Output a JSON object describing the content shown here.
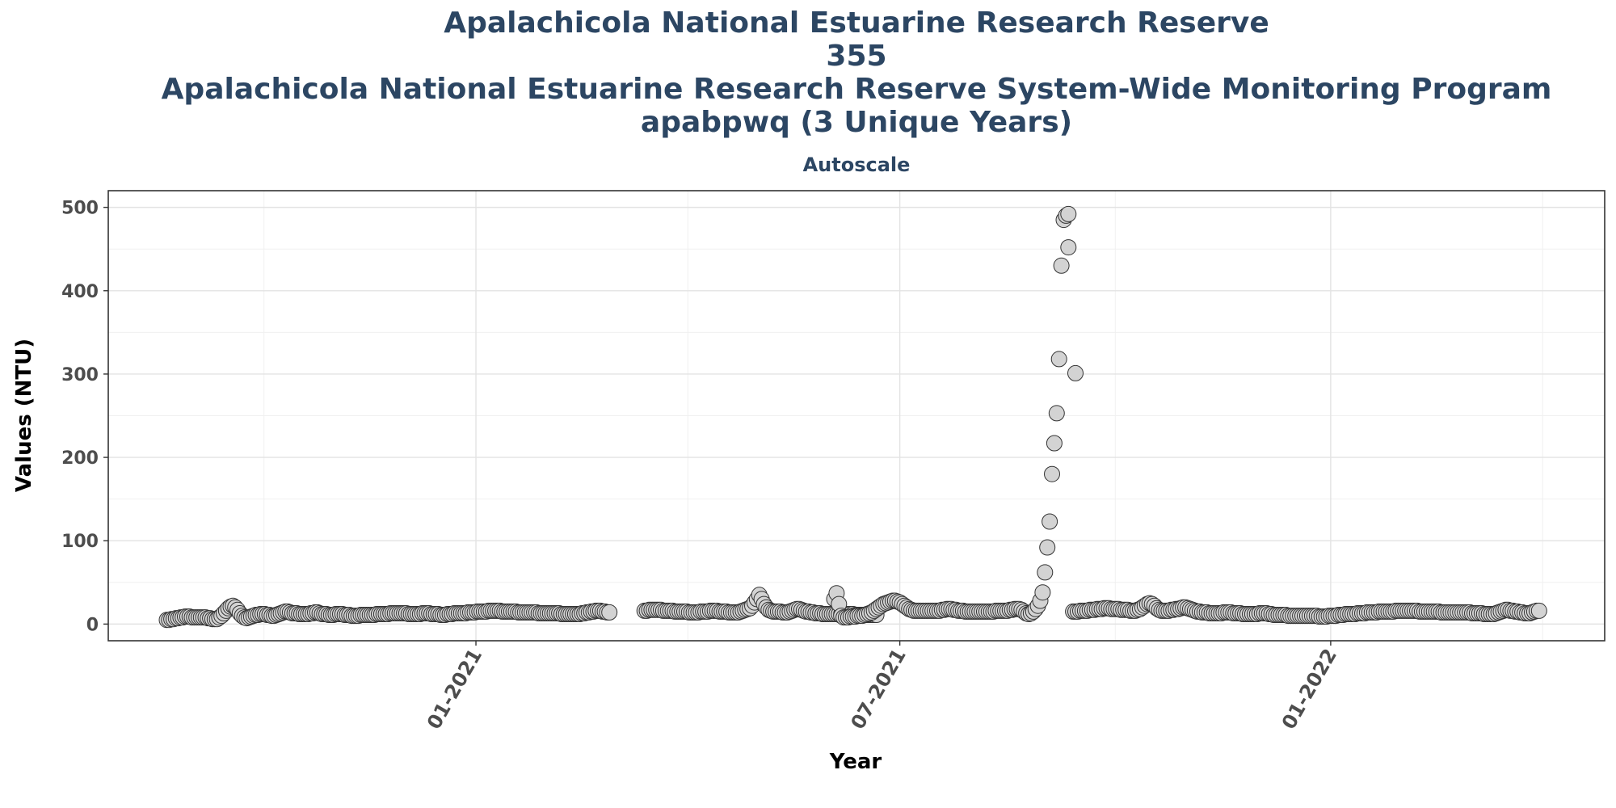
{
  "chart_data": {
    "type": "scatter",
    "title_lines": [
      "Apalachicola National Estuarine Research Reserve",
      "355",
      "Apalachicola National Estuarine Research Reserve System-Wide Monitoring Program",
      "apabpwq (3 Unique Years)"
    ],
    "subtitle": "Autoscale",
    "xlabel": "Year",
    "ylabel": "Values (NTU)",
    "xlim": [
      "2020-07-28",
      "2022-04-28"
    ],
    "ylim": [
      -20,
      520
    ],
    "x_ticks": [
      {
        "label": "01-2021",
        "date": "2021-01-01"
      },
      {
        "label": "07-2021",
        "date": "2021-07-01"
      },
      {
        "label": "01-2022",
        "date": "2022-01-01"
      }
    ],
    "y_ticks": [
      0,
      100,
      200,
      300,
      400,
      500
    ],
    "grid": true,
    "legend": "none",
    "marker_fill": "#D3D3D3",
    "marker_stroke": "#333333",
    "segments": [
      {
        "start": "2020-08-22",
        "end": "2021-02-27",
        "values": [
          5,
          5,
          6,
          6,
          7,
          7,
          8,
          8,
          9,
          9,
          9,
          8,
          8,
          8,
          8,
          8,
          8,
          8,
          7,
          7,
          6,
          6,
          6,
          8,
          10,
          13,
          16,
          19,
          21,
          22,
          20,
          17,
          13,
          10,
          8,
          7,
          8,
          9,
          10,
          11,
          11,
          12,
          12,
          12,
          11,
          11,
          10,
          10,
          11,
          12,
          13,
          14,
          15,
          15,
          14,
          13,
          13,
          13,
          12,
          12,
          12,
          12,
          12,
          13,
          13,
          14,
          14,
          13,
          12,
          12,
          12,
          11,
          11,
          11,
          12,
          12,
          12,
          12,
          11,
          11,
          11,
          10,
          10,
          10,
          10,
          11,
          11,
          11,
          11,
          11,
          11,
          11,
          12,
          12,
          12,
          12,
          12,
          12,
          13,
          13,
          13,
          13,
          13,
          13,
          13,
          13,
          12,
          12,
          12,
          12,
          12,
          12,
          13,
          13,
          13,
          13,
          12,
          12,
          12,
          12,
          11,
          11,
          11,
          12,
          12,
          12,
          13,
          13,
          13,
          13,
          13,
          13,
          14,
          14,
          14,
          14,
          15,
          15,
          15,
          15,
          15,
          16,
          16,
          16,
          16,
          16,
          16,
          15,
          15,
          15,
          15,
          15,
          15,
          15,
          14,
          14,
          14,
          14,
          14,
          14,
          14,
          14,
          14,
          13,
          13,
          13,
          13,
          13,
          13,
          13,
          13,
          13,
          13,
          12,
          12,
          12,
          12,
          12,
          12,
          12,
          12,
          12,
          13,
          13,
          14,
          14,
          15,
          15,
          16,
          16,
          16,
          15,
          15,
          14,
          14
        ]
      },
      {
        "start": "2021-03-14",
        "end": "2021-06-21",
        "values": [
          16,
          16,
          17,
          17,
          17,
          17,
          17,
          17,
          16,
          16,
          16,
          16,
          16,
          15,
          15,
          15,
          15,
          15,
          15,
          14,
          14,
          14,
          14,
          14,
          15,
          15,
          15,
          15,
          16,
          16,
          16,
          16,
          15,
          15,
          15,
          15,
          14,
          14,
          14,
          14,
          14,
          15,
          16,
          17,
          18,
          19,
          22,
          26,
          30,
          35,
          30,
          24,
          20,
          17,
          16,
          15,
          15,
          15,
          15,
          14,
          14,
          14,
          15,
          16,
          17,
          18,
          18,
          17,
          16,
          15,
          15,
          14,
          14,
          13,
          13,
          13,
          12,
          12,
          12,
          12,
          12,
          12,
          12,
          12,
          12,
          12,
          12,
          12,
          12,
          12,
          11,
          11,
          11,
          11,
          11,
          11,
          11,
          11,
          11,
          11
        ]
      },
      {
        "start": "2021-06-03",
        "end": "2021-06-06",
        "values": [
          30,
          37,
          24,
          10
        ]
      },
      {
        "start": "2021-06-07",
        "end": "2021-08-20",
        "values": [
          8,
          8,
          8,
          9,
          9,
          9,
          10,
          10,
          10,
          11,
          12,
          13,
          14,
          16,
          18,
          20,
          22,
          24,
          25,
          26,
          27,
          28,
          28,
          27,
          26,
          24,
          22,
          20,
          18,
          17,
          16,
          16,
          16,
          16,
          16,
          16,
          16,
          16,
          16,
          16,
          16,
          16,
          17,
          17,
          18,
          18,
          18,
          17,
          17,
          16,
          16,
          16,
          15,
          15,
          15,
          15,
          15,
          15,
          15,
          15,
          15,
          15,
          15,
          15,
          15,
          16,
          16,
          16,
          16,
          16,
          16,
          17,
          17,
          18,
          18
        ]
      },
      {
        "start": "2021-08-21",
        "end": "2021-09-11",
        "values": [
          18,
          17,
          15,
          13,
          12,
          13,
          15,
          18,
          22,
          28,
          38,
          62,
          92,
          123,
          180,
          217,
          253,
          318,
          430,
          485,
          490,
          492
        ]
      },
      {
        "start": "2021-09-11",
        "end": "2021-09-14",
        "values": [
          452,
          301
        ]
      },
      {
        "start": "2021-09-13",
        "end": "2022-03-31",
        "values": [
          15,
          15,
          15,
          16,
          16,
          16,
          16,
          17,
          17,
          17,
          18,
          18,
          18,
          19,
          19,
          19,
          18,
          18,
          18,
          18,
          17,
          17,
          17,
          17,
          16,
          16,
          16,
          17,
          18,
          20,
          22,
          24,
          25,
          24,
          22,
          19,
          17,
          16,
          16,
          16,
          16,
          17,
          17,
          18,
          18,
          19,
          20,
          20,
          19,
          18,
          17,
          16,
          15,
          15,
          14,
          14,
          14,
          13,
          13,
          13,
          13,
          13,
          13,
          14,
          14,
          14,
          14,
          13,
          13,
          13,
          13,
          12,
          12,
          12,
          12,
          12,
          12,
          12,
          13,
          13,
          13,
          13,
          12,
          12,
          11,
          11,
          11,
          11,
          11,
          11,
          10,
          10,
          10,
          10,
          10,
          10,
          10,
          10,
          10,
          10,
          10,
          10,
          10,
          9,
          9,
          9,
          9,
          10,
          10,
          10,
          10,
          11,
          11,
          11,
          12,
          12,
          12,
          12,
          12,
          13,
          13,
          13,
          13,
          14,
          14,
          14,
          14,
          14,
          15,
          15,
          15,
          15,
          15,
          15,
          15,
          16,
          16,
          16,
          16,
          16,
          16,
          16,
          16,
          16,
          16,
          15,
          15,
          15,
          15,
          15,
          15,
          15,
          15,
          15,
          14,
          14,
          14,
          14,
          14,
          14,
          14,
          14,
          14,
          14,
          14,
          14,
          14,
          13,
          13,
          13,
          13,
          13,
          12,
          12,
          12,
          12,
          12,
          13,
          14,
          15,
          16,
          17,
          17,
          16,
          16,
          15,
          15,
          14,
          14,
          13,
          13,
          13,
          14,
          15,
          16,
          16
        ]
      }
    ]
  }
}
